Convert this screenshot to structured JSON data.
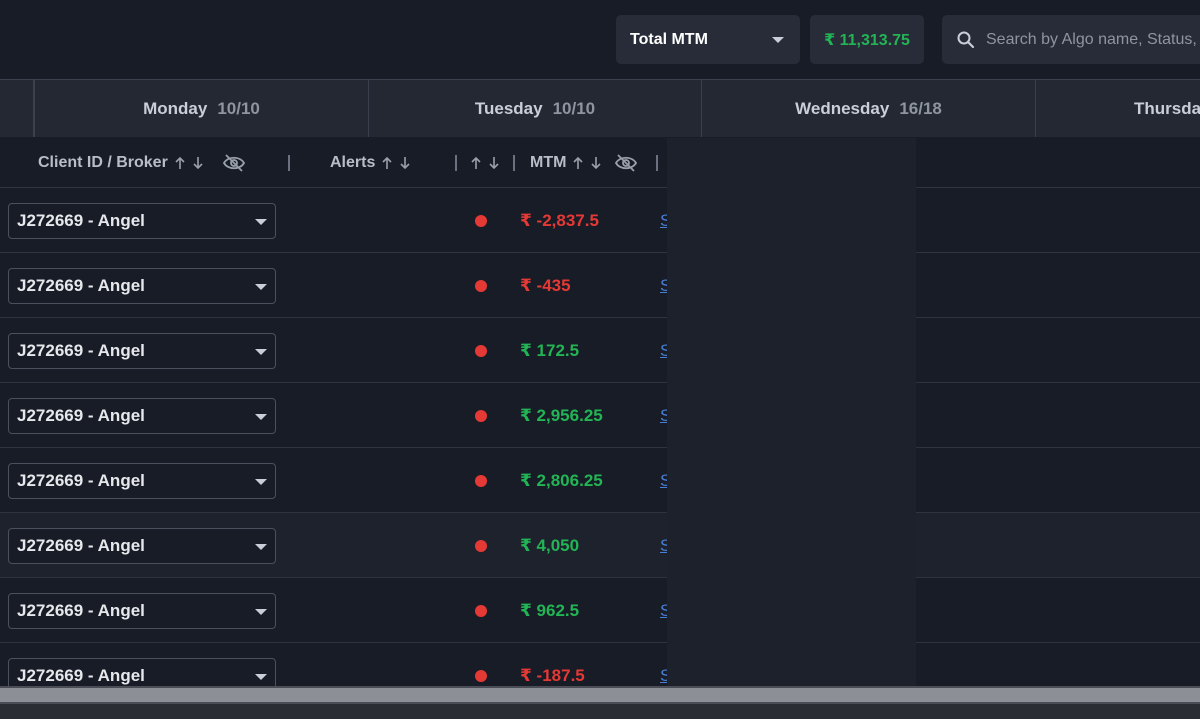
{
  "header": {
    "mtm_select": {
      "label": "Total MTM",
      "icon": "chevron-down-icon"
    },
    "mtm_total": "₹ 11,313.75",
    "search": {
      "placeholder": "Search by Algo name, Status, etc",
      "icon": "search-icon"
    }
  },
  "days": [
    {
      "name": "Monday",
      "count": "10/10"
    },
    {
      "name": "Tuesday",
      "count": "10/10"
    },
    {
      "name": "Wednesday",
      "count": "16/18"
    },
    {
      "name": "Thursday",
      "count": ""
    }
  ],
  "columns": {
    "client": "Client ID / Broker",
    "alerts": "Alerts",
    "mtm": "MTM"
  },
  "rows": [
    {
      "client": "J272669 - Angel",
      "mtm": "₹ -2,837.5",
      "sign": "neg",
      "link": "S"
    },
    {
      "client": "J272669 - Angel",
      "mtm": "₹ -435",
      "sign": "neg",
      "link": "S"
    },
    {
      "client": "J272669 - Angel",
      "mtm": "₹ 172.5",
      "sign": "pos",
      "link": "S"
    },
    {
      "client": "J272669 - Angel",
      "mtm": "₹ 2,956.25",
      "sign": "pos",
      "link": "S"
    },
    {
      "client": "J272669 - Angel",
      "mtm": "₹ 2,806.25",
      "sign": "pos",
      "link": "S"
    },
    {
      "client": "J272669 - Angel",
      "mtm": "₹ 4,050",
      "sign": "pos",
      "link": "S"
    },
    {
      "client": "J272669 - Angel",
      "mtm": "₹ 962.5",
      "sign": "pos",
      "link": "S"
    },
    {
      "client": "J272669 - Angel",
      "mtm": "₹ -187.5",
      "sign": "neg",
      "link": "S"
    }
  ],
  "colors": {
    "background": "#181c26",
    "positive": "#22b455",
    "negative": "#e53935",
    "status_dot": "#e53935",
    "link": "#4a7fd6"
  }
}
